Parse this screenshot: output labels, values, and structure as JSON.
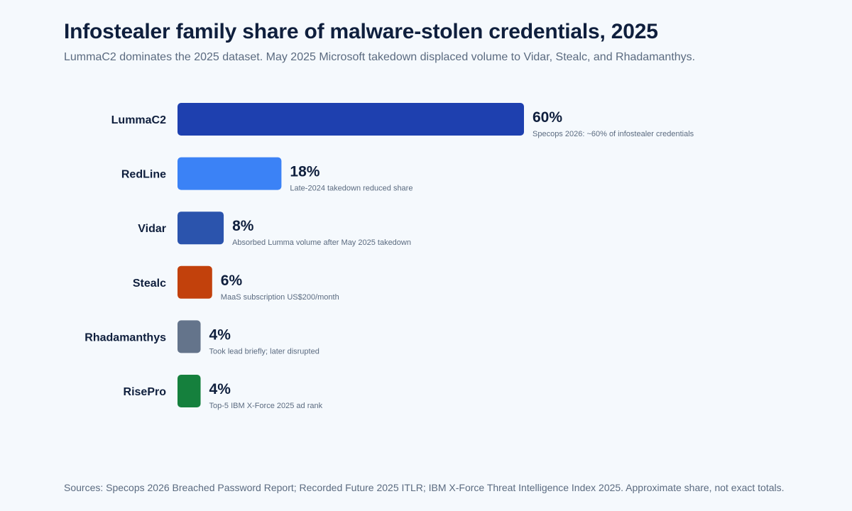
{
  "header": {
    "title": "Infostealer family share of malware-stolen credentials, 2025",
    "subtitle": "LummaC2 dominates the 2025 dataset. May 2025 Microsoft takedown displaced volume to Vidar, Stealc, and Rhadamanthys."
  },
  "footer": {
    "sources": "Sources: Specops 2026 Breached Password Report; Recorded Future 2025 ITLR; IBM X-Force Threat Intelligence Index 2025. Approximate share, not exact totals."
  },
  "chart_data": {
    "type": "bar",
    "orientation": "horizontal",
    "unit": "%",
    "xlim": [
      0,
      60
    ],
    "grid": false,
    "legend": "none",
    "categories": [
      "LummaC2",
      "RedLine",
      "Vidar",
      "Stealc",
      "Rhadamanthys",
      "RisePro"
    ],
    "values": [
      60,
      18,
      8,
      6,
      4,
      4
    ],
    "value_labels": [
      "60%",
      "18%",
      "8%",
      "6%",
      "4%",
      "4%"
    ],
    "annotations": [
      "Specops 2026: ~60% of infostealer credentials",
      "Late-2024 takedown reduced share",
      "Absorbed Lumma volume after May 2025 takedown",
      "MaaS subscription US$200/month",
      "Took lead briefly; later disrupted",
      "Top-5 IBM X-Force 2025 ad rank"
    ],
    "colors": [
      "#1e40af",
      "#3b82f6",
      "#2b54ad",
      "#c2410c",
      "#64748b",
      "#15803d"
    ]
  }
}
